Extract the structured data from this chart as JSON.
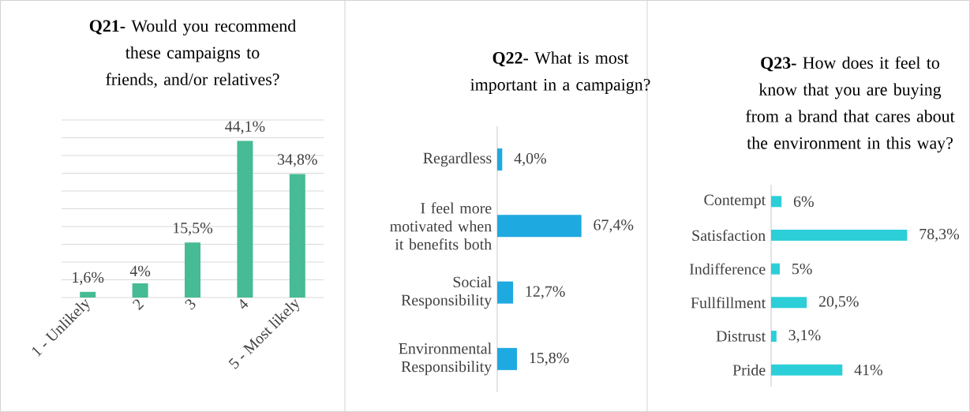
{
  "chart_data": [
    {
      "type": "bar",
      "title": "**Q21-** Would you recommend these campaigns to friends, and/or relatives?",
      "categories": [
        "1 - Unlikely",
        "2",
        "3",
        "4",
        "5 - Most likely"
      ],
      "values": [
        1.6,
        4,
        15.5,
        44.1,
        34.8
      ],
      "value_labels": [
        "1,6%",
        "4%",
        "15,5%",
        "44,1%",
        "34,8%"
      ],
      "color": "#46bb95",
      "ylim": [
        0,
        50
      ],
      "yticks": [
        {
          "value": 0,
          "label": null
        },
        {
          "value": 5,
          "label": null
        },
        {
          "value": 10,
          "label": null
        },
        {
          "value": 15,
          "label": null
        },
        {
          "value": 20,
          "label": null
        },
        {
          "value": 25,
          "label": null
        },
        {
          "value": 30,
          "label": null
        },
        {
          "value": 35,
          "label": null
        },
        {
          "value": 40,
          "label": null
        },
        {
          "value": 45,
          "label": null
        },
        {
          "value": 50,
          "label": null
        }
      ],
      "grid": "y",
      "tick_labels": "x"
    },
    {
      "type": "bar",
      "orientation": "horizontal",
      "title": "**Q22-** What is most important in a campaign?",
      "categories": [
        "Regardless",
        "I feel more motivated when it benefits both",
        "Social Responsibility",
        "Environmental Responsibility"
      ],
      "values": [
        4.0,
        67.4,
        12.7,
        15.8
      ],
      "value_labels": [
        "4,0%",
        "67,4%",
        "12,7%",
        "15,8%"
      ],
      "color": "#1fa9e1",
      "tick_labels": "y"
    },
    {
      "type": "bar",
      "orientation": "horizontal",
      "title": "**Q23-** How does it feel to know that you are buying from a brand that cares about the environment in this way?",
      "categories": [
        "Contempt",
        "Satisfaction",
        "Indifference",
        "Fullfillment",
        "Distrust",
        "Pride"
      ],
      "values": [
        6,
        78.3,
        5,
        20.5,
        3.1,
        41
      ],
      "value_labels": [
        "6%",
        "78,3%",
        "5%",
        "20,5%",
        "3,1%",
        "41%"
      ],
      "color": "#2ccfd8",
      "tick_labels": "y"
    }
  ]
}
